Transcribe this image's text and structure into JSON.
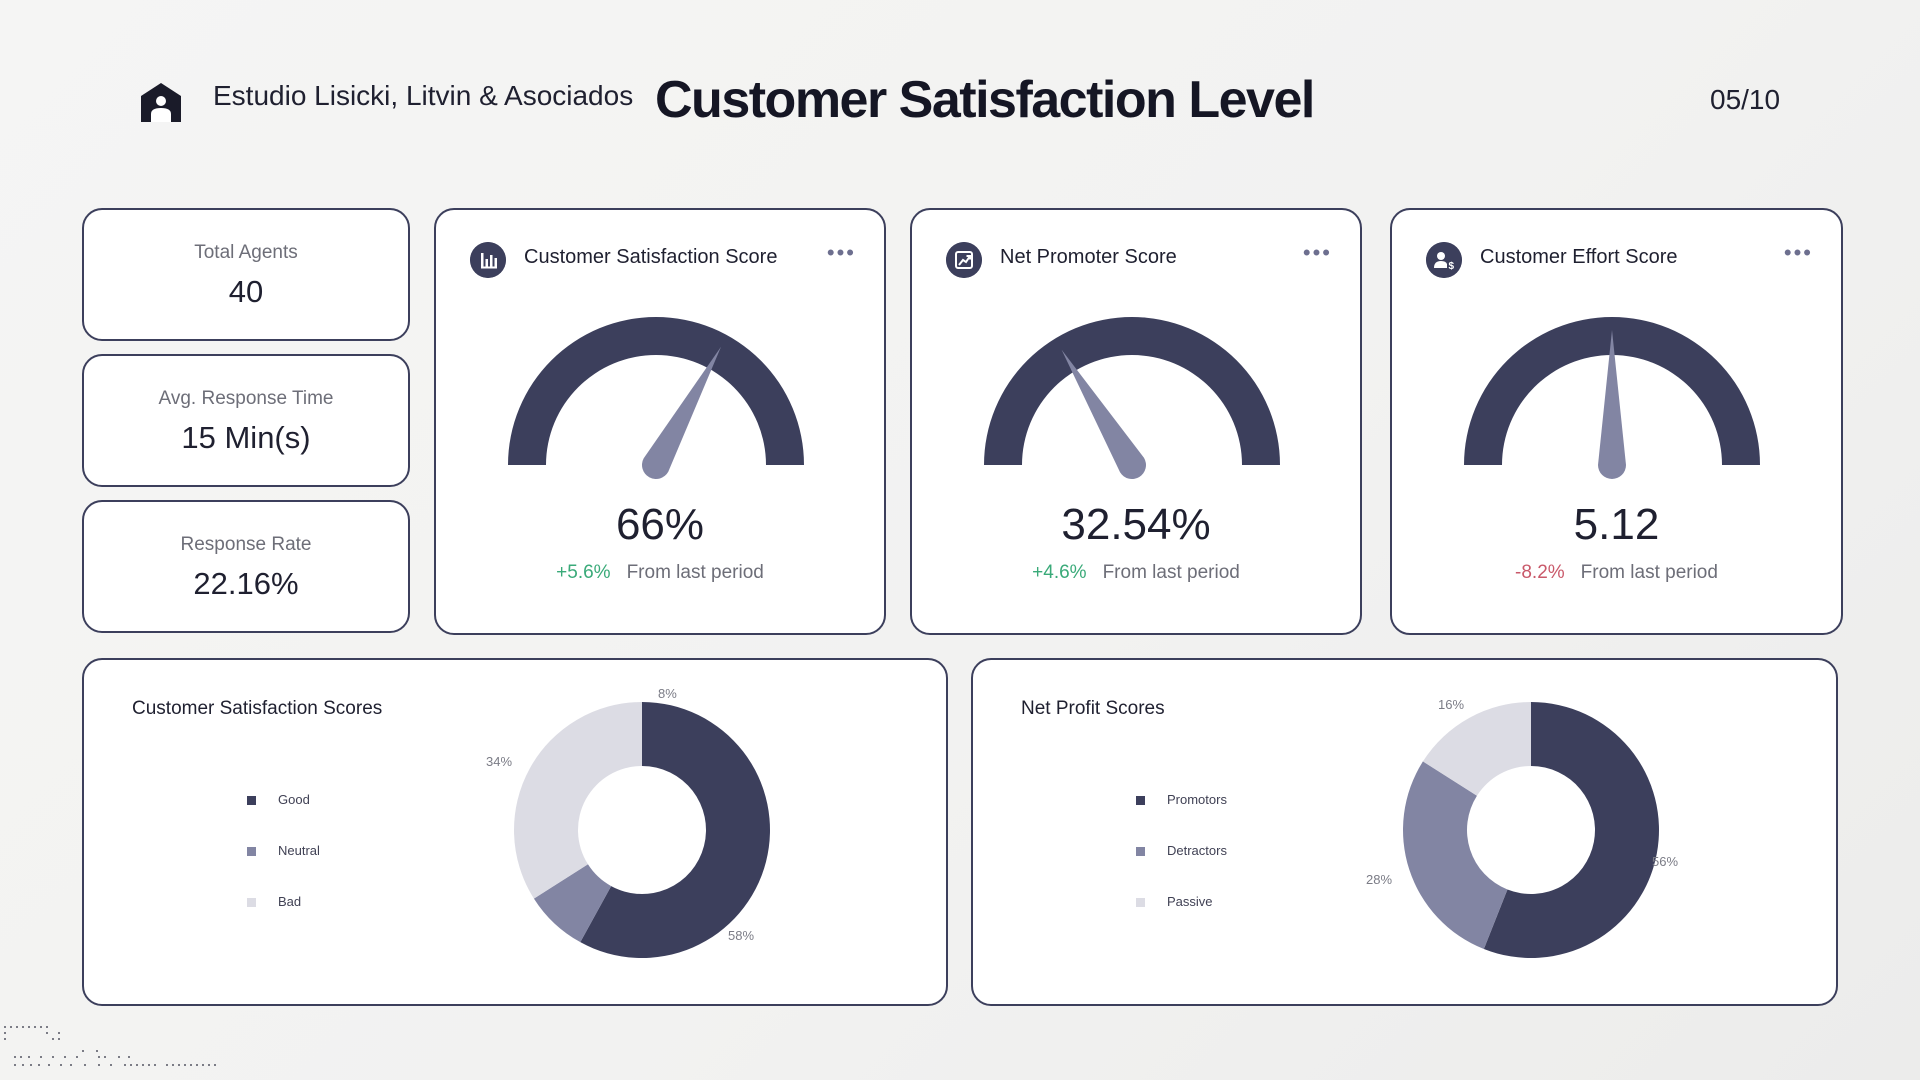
{
  "header": {
    "firm_name": "Estudio Lisicki, Litvin & Asociados",
    "title": "Customer Satisfaction Level",
    "page_number": "05/10",
    "logo_icon": "house-logo-icon"
  },
  "stats": [
    {
      "label": "Total Agents",
      "value": "40"
    },
    {
      "label": "Avg. Response Time",
      "value": "15 Min(s)"
    },
    {
      "label": "Response Rate",
      "value": "22.16%"
    }
  ],
  "gauges": [
    {
      "title": "Customer Satisfaction Score",
      "icon": "bar-chart-icon",
      "value": "66%",
      "needle_fraction": 0.66,
      "change": "+5.6%",
      "direction": "up",
      "change_text": "From last period"
    },
    {
      "title": "Net Promoter Score",
      "icon": "trend-up-icon",
      "value": "32.54%",
      "needle_fraction": 0.3254,
      "change": "+4.6%",
      "direction": "up",
      "change_text": "From last period"
    },
    {
      "title": "Customer Effort Score",
      "icon": "user-dollar-icon",
      "value": "5.12",
      "needle_fraction": 0.5,
      "change": "-8.2%",
      "direction": "down",
      "change_text": "From last period"
    }
  ],
  "more_icon": "more-dots-icon",
  "colors": {
    "dark": "#3c3f5c",
    "medium": "#8285a3",
    "light": "#dcdce4",
    "positive": "#3aaa79",
    "negative": "#c9596a"
  },
  "chart_data": [
    {
      "type": "pie",
      "title": "Customer Satisfaction Scores",
      "categories": [
        "Good",
        "Neutral",
        "Bad"
      ],
      "values": [
        58,
        8,
        34
      ],
      "labels": [
        "58%",
        "8%",
        "34%"
      ],
      "colors": [
        "#3c3f5c",
        "#8285a3",
        "#dcdce4"
      ],
      "legend": "left"
    },
    {
      "type": "pie",
      "title": "Net Profit Scores",
      "categories": [
        "Promotors",
        "Detractors",
        "Passive"
      ],
      "values": [
        56,
        28,
        16
      ],
      "labels": [
        "56%",
        "28%",
        "16%"
      ],
      "colors": [
        "#3c3f5c",
        "#8285a3",
        "#dcdce4"
      ],
      "legend": "left"
    }
  ]
}
